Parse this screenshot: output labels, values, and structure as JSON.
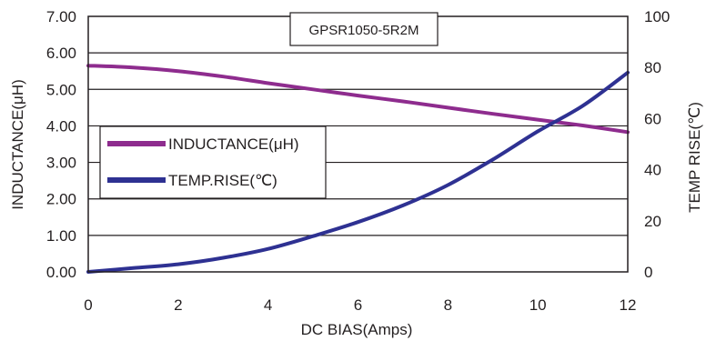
{
  "chart_data": {
    "type": "line",
    "title": "GPSR1050-5R2M",
    "xlabel": "DC BIAS(Amps)",
    "ylabel": "INDUCTANCE(μH)",
    "y2label": "TEMP RISE(℃)",
    "xlim": [
      0,
      12
    ],
    "ylim": [
      0,
      7
    ],
    "y2lim": [
      0,
      100
    ],
    "x_ticks": [
      0,
      2,
      4,
      6,
      8,
      10,
      12
    ],
    "y_ticks": [
      0,
      1,
      2,
      3,
      4,
      5,
      6,
      7
    ],
    "y_tick_labels": [
      "0.00",
      "1.00",
      "2.00",
      "3.00",
      "4.00",
      "5.00",
      "6.00",
      "7.00"
    ],
    "y2_ticks": [
      0,
      20,
      40,
      60,
      80,
      100
    ],
    "grid": "horizontal",
    "legend_position": "left-middle",
    "series": [
      {
        "name": "INDUCTANCE(μH)",
        "axis": "left",
        "color": "#8e2c8e",
        "x": [
          0,
          1,
          2,
          3,
          4,
          5,
          6,
          7,
          8,
          9,
          10,
          11,
          12
        ],
        "y": [
          5.65,
          5.6,
          5.5,
          5.35,
          5.17,
          5.0,
          4.83,
          4.67,
          4.5,
          4.33,
          4.17,
          4.01,
          3.83
        ]
      },
      {
        "name": "TEMP.RISE(℃)",
        "axis": "right",
        "color": "#2e3192",
        "x": [
          0,
          1,
          2,
          3,
          4,
          5,
          6,
          7,
          8,
          9,
          10,
          11,
          12
        ],
        "y": [
          0,
          1.5,
          3,
          5.5,
          9,
          14,
          19.5,
          26,
          34,
          44,
          55,
          65,
          78
        ]
      }
    ]
  }
}
